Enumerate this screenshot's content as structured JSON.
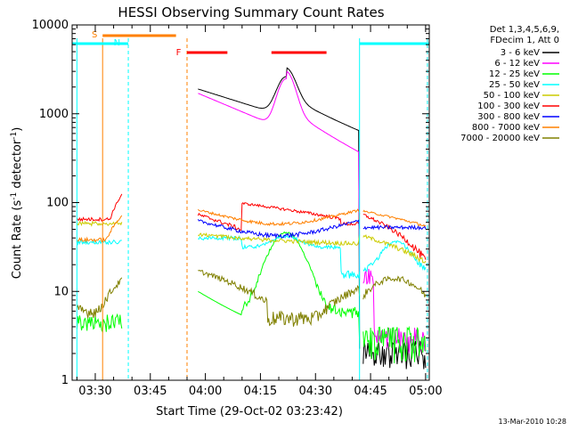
{
  "chart_data": {
    "type": "line",
    "title": "HESSI Observing Summary Count Rates",
    "xlabel": "Start Time (29-Oct-02 03:23:42)",
    "ylabel_main": "Count Rate (s",
    "ylabel_sup1": "-1",
    "ylabel_mid": " detector",
    "ylabel_sup2": "-1",
    "ylabel_end": ")",
    "y_scale": "log",
    "ylim": [
      1,
      10000
    ],
    "xlim": [
      "03:23:42",
      "05:01:00"
    ],
    "x_ticks": [
      "03:30",
      "03:45",
      "04:00",
      "04:15",
      "04:30",
      "04:45",
      "05:00"
    ],
    "y_ticks": [
      "1",
      "10",
      "100",
      "1000",
      "10000"
    ],
    "legend_header": [
      "Det 1,3,4,5,6,9,",
      "FDecim 1, Att 0"
    ],
    "legend_position": "right",
    "footer": "13-Mar-2010 10:28",
    "series": [
      {
        "name": "3 - 6 keV",
        "color": "#000000"
      },
      {
        "name": "6 - 12 keV",
        "color": "#ff00ff"
      },
      {
        "name": "12 - 25 keV",
        "color": "#00ff00"
      },
      {
        "name": "25 - 50 keV",
        "color": "#00ffff"
      },
      {
        "name": "50 - 100 keV",
        "color": "#cccc00"
      },
      {
        "name": "100 - 300 keV",
        "color": "#ff0000"
      },
      {
        "name": "300 - 800 keV",
        "color": "#0000ff"
      },
      {
        "name": "800 - 7000 keV",
        "color": "#ff8000"
      },
      {
        "name": "7000 - 20000 keV",
        "color": "#808000"
      }
    ],
    "flags": [
      {
        "label": "S",
        "color": "#ff8000",
        "start": "03:32",
        "end": "03:52"
      },
      {
        "label": "N",
        "color": "#00ffff",
        "start": "03:23:42",
        "end": "03:39"
      },
      {
        "label": "N",
        "color": "#00ffff",
        "start": "04:42",
        "end": "05:01"
      },
      {
        "label": "F",
        "color": "#ff0000",
        "start": "03:55",
        "end": "04:06"
      },
      {
        "label": "F",
        "color": "#ff0000",
        "start": "04:18",
        "end": "04:33"
      }
    ],
    "flag_letters": [
      "S",
      "N",
      "F"
    ],
    "grid": false
  }
}
